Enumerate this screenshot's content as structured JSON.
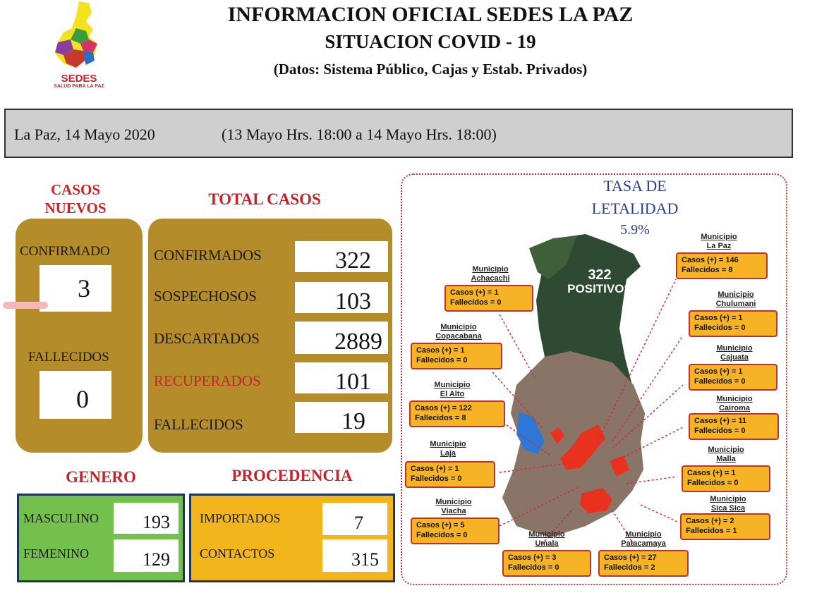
{
  "header": {
    "logo_text": "SEDES",
    "logo_sub": "SALUD PARA LA PAZ",
    "title1": "INFORMACION OFICIAL SEDES LA PAZ",
    "title2": "SITUACION  COVID - 19",
    "subtitle": "(Datos: Sistema Público, Cajas y Estab. Privados)"
  },
  "datebar": {
    "date": "La Paz, 14 Mayo  2020",
    "range": "(13 Mayo Hrs. 18:00 a 14 Mayo Hrs. 18:00)"
  },
  "casos_nuevos": {
    "title_line1": "CASOS",
    "title_line2": "NUEVOS",
    "confirmado_label": "CONFIRMADO",
    "confirmado_value": "3",
    "fallecidos_label": "FALLECIDOS",
    "fallecidos_value": "0"
  },
  "total_casos": {
    "title": "TOTAL CASOS",
    "rows": [
      {
        "label": "CONFIRMADOS",
        "value": "322"
      },
      {
        "label": "SOSPECHOSOS",
        "value": "103"
      },
      {
        "label": "DESCARTADOS",
        "value": "2889"
      },
      {
        "label": "RECUPERADOS",
        "value": "101"
      },
      {
        "label": "FALLECIDOS",
        "value": "19"
      }
    ]
  },
  "genero": {
    "title": "GENERO",
    "rows": [
      {
        "label": "MASCULINO",
        "value": "193"
      },
      {
        "label": "FEMENINO",
        "value": "129"
      }
    ]
  },
  "procedencia": {
    "title": "PROCEDENCIA",
    "rows": [
      {
        "label": "IMPORTADOS",
        "value": "7"
      },
      {
        "label": "CONTACTOS",
        "value": "315"
      }
    ]
  },
  "map": {
    "tasa_line1": "TASA  DE",
    "tasa_line2": "LETALIDAD",
    "tasa_value": "5.9%",
    "positivos_value": "322",
    "positivos_label": "POSITIVOS",
    "municipios": [
      {
        "muni": "Municipio",
        "name": "La Paz",
        "casos": "Casos (+)  =  146",
        "fall": "Fallecidos =    8"
      },
      {
        "muni": "Municipio",
        "name": "Achacachi",
        "casos": "Casos (+)  =   1",
        "fall": "Fallecidos =   0"
      },
      {
        "muni": "Municipio",
        "name": "Chulumani",
        "casos": "Casos (+)  =   1",
        "fall": "Fallecidos =   0"
      },
      {
        "muni": "Municipio",
        "name": "Copacabana",
        "casos": "Casos (+)  =   1",
        "fall": "Fallecidos =   0"
      },
      {
        "muni": "Municipio",
        "name": "Cajuata",
        "casos": "Casos (+)  =   1",
        "fall": "Fallecidos =   0"
      },
      {
        "muni": "Municipio",
        "name": "El Alto",
        "casos": "Casos (+)  = 122",
        "fall": "Fallecidos =     8"
      },
      {
        "muni": "Municipio",
        "name": "Cairoma",
        "casos": "Casos (+)  =  11",
        "fall": "Fallecidos =   0"
      },
      {
        "muni": "Municipio",
        "name": "Laja",
        "casos": "Casos (+)  =   1",
        "fall": "Fallecidos =   0"
      },
      {
        "muni": "Municipio",
        "name": "Malla",
        "casos": "Casos (+)  =   1",
        "fall": "Fallecidos =   0"
      },
      {
        "muni": "Municipio",
        "name": "Viacha",
        "casos": "Casos (+)  =   5",
        "fall": "Fallecidos =   0"
      },
      {
        "muni": "Municipio",
        "name": "Sica Sica",
        "casos": "Casos (+)  =   2",
        "fall": "Fallecidos =   1"
      },
      {
        "muni": "Municipio",
        "name": "Umala",
        "casos": "Casos (+)  =   3",
        "fall": "Fallecidos =   0"
      },
      {
        "muni": "Municipio",
        "name": "Patacamaya",
        "casos": "Casos (+)  = 27",
        "fall": "Fallecidos =   2"
      }
    ]
  },
  "colors": {
    "gold": "#b48c2a",
    "red": "#c4242a",
    "green": "#74c04c",
    "yellow": "#f2b61c",
    "navy": "#1d3557"
  }
}
